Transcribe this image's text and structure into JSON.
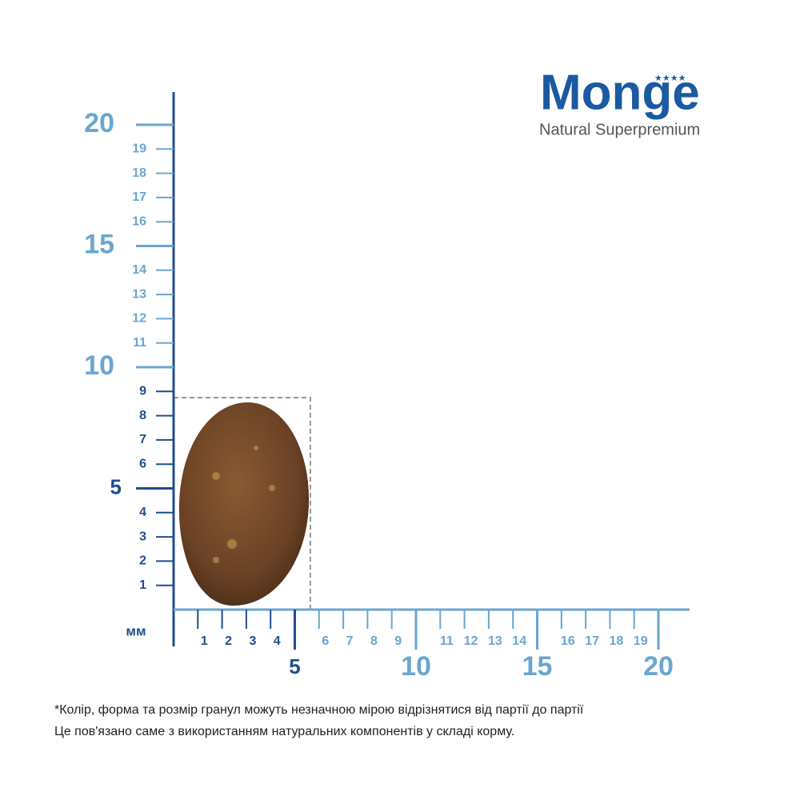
{
  "logo": {
    "brand": "Monge",
    "tagline": "Natural Superpremium"
  },
  "ruler": {
    "unit": "мм",
    "y_minor": [
      1,
      2,
      3,
      4,
      6,
      7,
      8,
      9,
      11,
      12,
      13,
      14,
      16,
      17,
      18,
      19
    ],
    "y_major": [
      5,
      10,
      15,
      20
    ],
    "x_minor": [
      1,
      2,
      3,
      4,
      6,
      7,
      8,
      9,
      11,
      12,
      13,
      14,
      16,
      17,
      18,
      19
    ],
    "x_major": [
      5,
      10,
      15,
      20
    ]
  },
  "note": [
    "*Колір, форма та розмір гранул можуть незначною мірою відрізнятися від партії до партії",
    "Це пов'язано саме з використанням натуральних компонентів у складі корму."
  ]
}
